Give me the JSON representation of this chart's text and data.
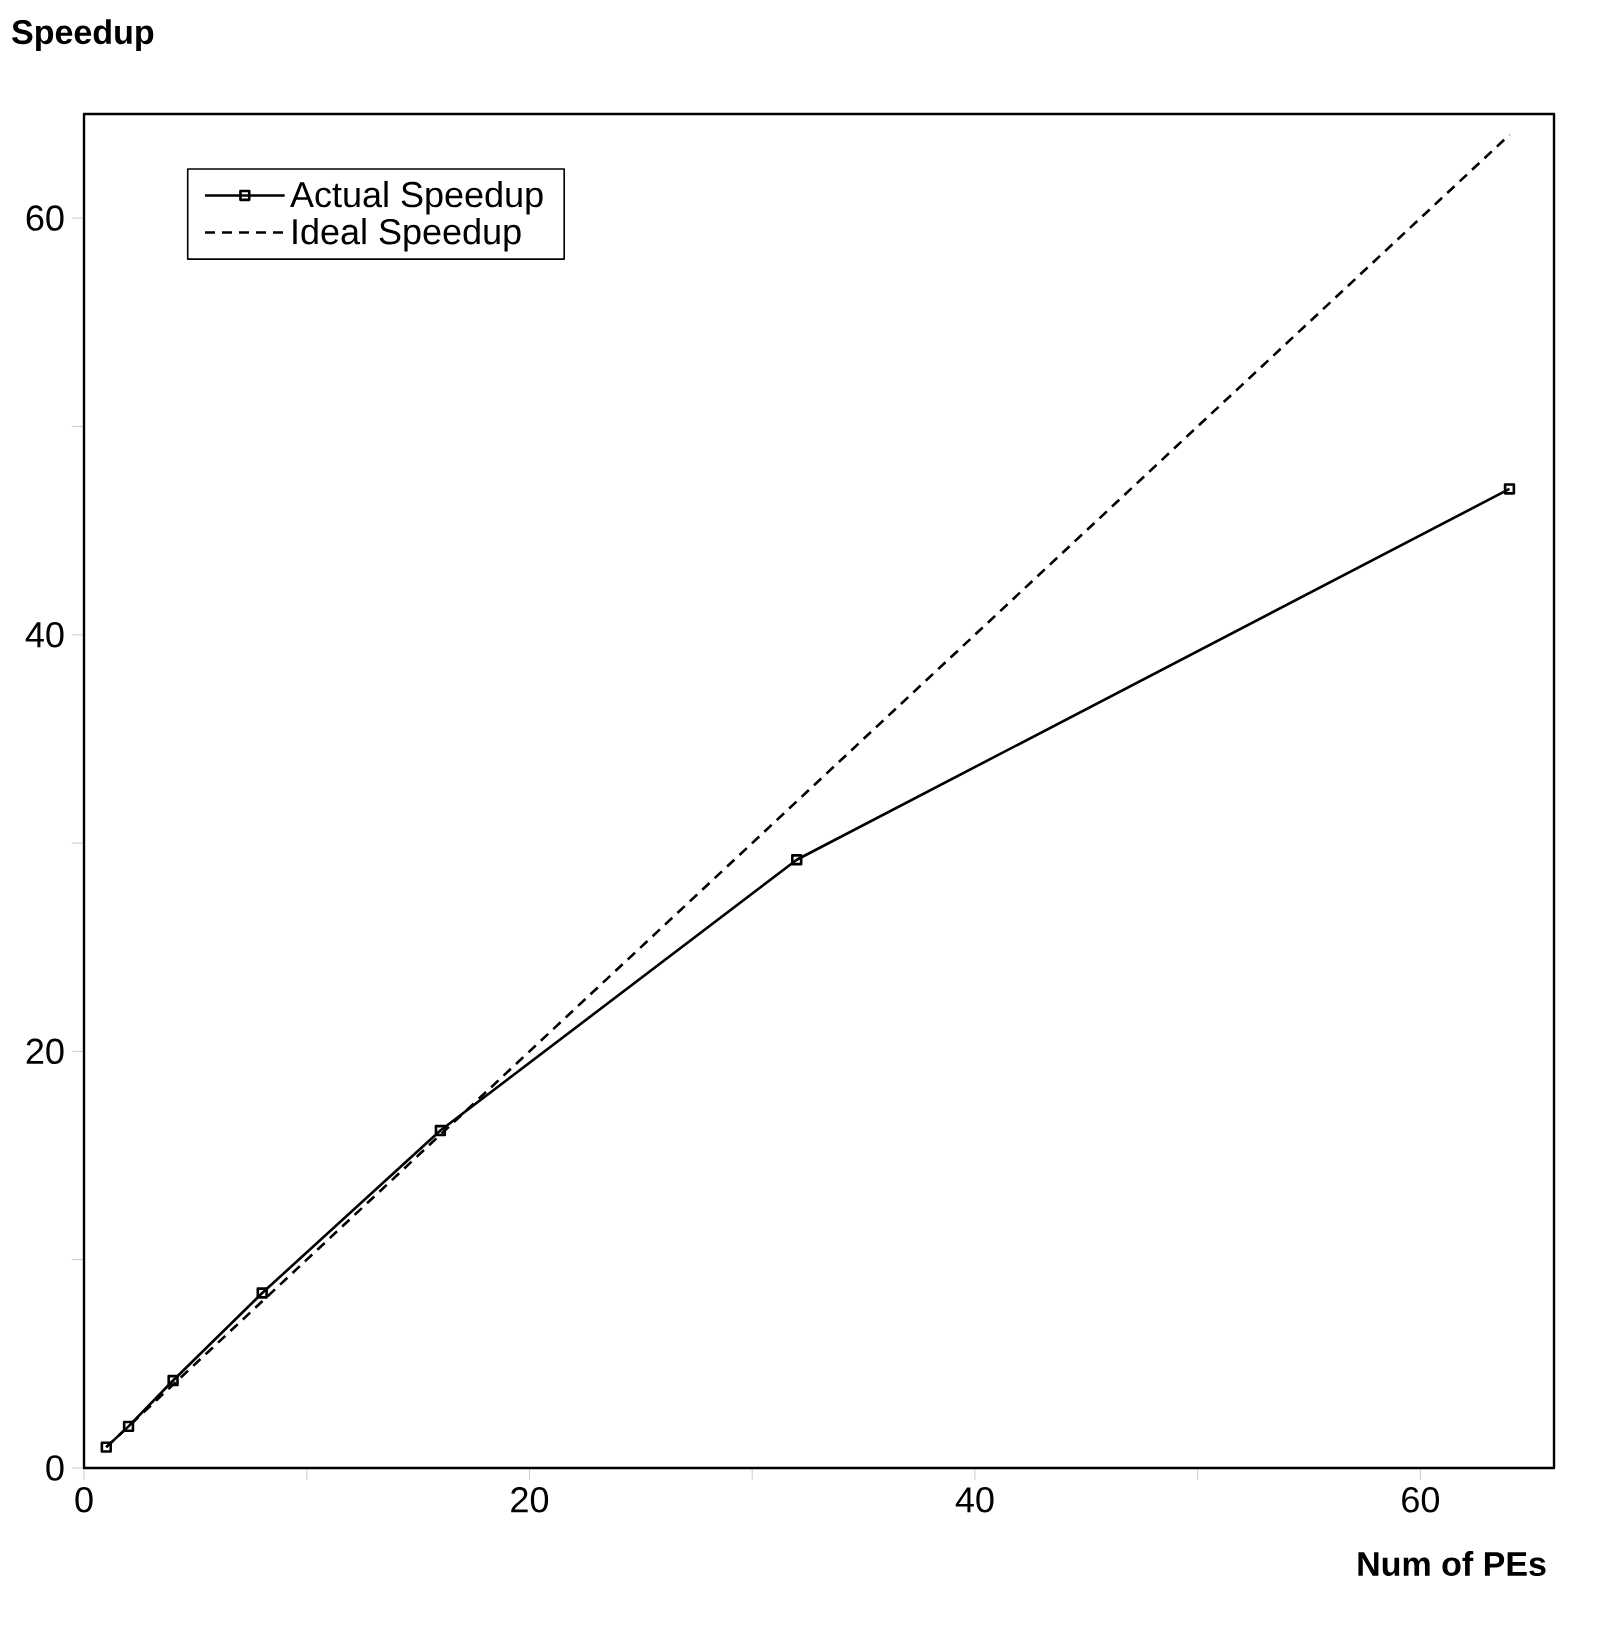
{
  "chart_data": {
    "type": "line",
    "xlabel": "Num of PEs",
    "ylabel": "Speedup",
    "series": [
      {
        "name": "Actual Speedup",
        "color": "#000000",
        "x": [
          1,
          2,
          4,
          8,
          16,
          32,
          64
        ],
        "values": [
          1,
          2,
          4.2,
          8.4,
          16.2,
          29.2,
          47
        ],
        "marker": "square",
        "line_style": "solid"
      },
      {
        "name": "Ideal Speedup",
        "color": "#000000",
        "x": [
          1,
          64
        ],
        "values": [
          1,
          64
        ],
        "marker": "none",
        "line_style": "dashed"
      }
    ],
    "xlim": [
      0,
      66
    ],
    "ylim": [
      0,
      65
    ],
    "xticks": [
      0,
      {
        "value": 10,
        "label": null
      },
      20,
      {
        "value": 30,
        "label": null
      },
      40,
      {
        "value": 50,
        "label": null
      },
      60
    ],
    "yticks": [
      0,
      {
        "value": 10,
        "label": null
      },
      20,
      {
        "value": 30,
        "label": null
      },
      40,
      {
        "value": 50,
        "label": null
      },
      60
    ],
    "grid": false,
    "legend": "top left"
  }
}
